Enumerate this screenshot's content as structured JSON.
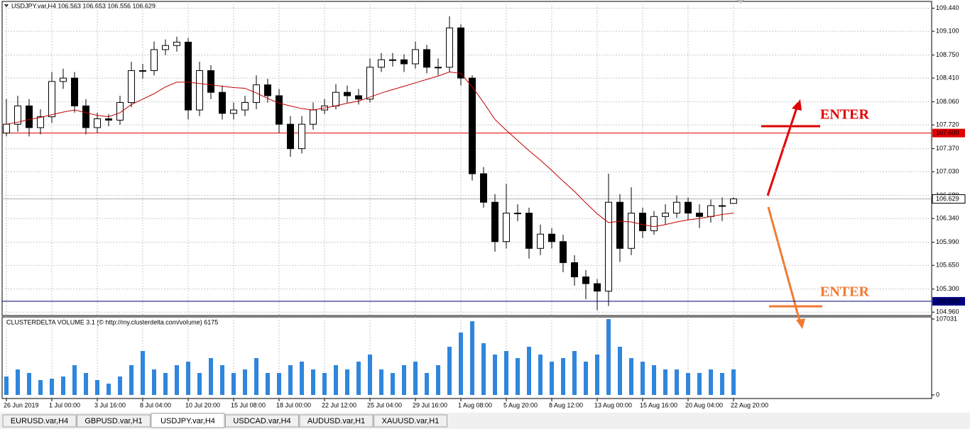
{
  "chart_data": [
    {
      "type": "candlestick",
      "title": "USDJPY.var,H4  106.563 106.653 106.556 106.629",
      "categories": [
        "26 Jun 2019",
        null,
        null,
        null,
        "1 Jul 00:00",
        null,
        null,
        null,
        "3 Jul 16:00",
        null,
        null,
        null,
        "8 Jul 04:00",
        null,
        null,
        null,
        "10 Jul 20:00",
        null,
        null,
        null,
        "15 Jul 08:00",
        null,
        null,
        null,
        "18 Jul 00:00",
        null,
        null,
        null,
        "22 Jul 12:00",
        null,
        null,
        null,
        "25 Jul 04:00",
        null,
        null,
        null,
        "29 Jul 16:00",
        null,
        null,
        null,
        "1 Aug 08:00",
        null,
        null,
        null,
        "5 Aug 20:00",
        null,
        null,
        null,
        "8 Aug 12:00",
        null,
        null,
        null,
        "13 Aug 00:00",
        null,
        null,
        null,
        "15 Aug 16:00",
        null,
        null,
        null,
        "20 Aug 04:00",
        null,
        null,
        null,
        "22 Aug 20:00"
      ],
      "open": [
        107.6,
        107.73,
        108.0,
        107.68,
        107.84,
        108.36,
        108.41,
        108.0,
        107.68,
        107.81,
        107.79,
        108.05,
        108.52,
        108.52,
        108.83,
        108.89,
        108.94,
        107.94,
        108.52,
        108.2,
        107.89,
        107.94,
        108.05,
        108.31,
        108.15,
        107.73,
        107.37,
        107.73,
        107.94,
        108.0,
        108.2,
        108.15,
        108.1,
        108.57,
        108.68,
        108.68,
        108.62,
        108.83,
        108.57,
        108.57,
        109.15,
        108.41,
        107.0,
        106.58,
        106.0,
        106.42,
        106.42,
        105.9,
        106.11,
        106.0,
        105.69,
        105.48,
        105.38,
        105.27,
        106.58,
        105.9,
        106.42,
        106.16,
        106.37,
        106.42,
        106.58,
        106.42,
        106.37,
        106.53,
        106.563
      ],
      "high": [
        108.1,
        108.15,
        108.1,
        107.95,
        108.5,
        108.55,
        108.5,
        108.1,
        107.9,
        107.88,
        108.15,
        108.65,
        108.62,
        108.95,
        108.98,
        109.02,
        109.0,
        108.65,
        108.6,
        108.3,
        108.05,
        108.15,
        108.45,
        108.4,
        108.25,
        107.85,
        107.85,
        108.05,
        108.1,
        108.32,
        108.3,
        108.25,
        108.7,
        108.78,
        108.78,
        108.76,
        108.95,
        108.9,
        108.7,
        109.32,
        109.2,
        108.45,
        107.1,
        106.7,
        106.85,
        106.55,
        106.5,
        106.25,
        106.2,
        106.1,
        105.8,
        105.58,
        105.45,
        107.0,
        106.7,
        106.8,
        106.5,
        106.45,
        106.55,
        106.68,
        106.65,
        106.55,
        106.62,
        106.65,
        106.653
      ],
      "low": [
        107.55,
        107.62,
        107.55,
        107.58,
        107.75,
        108.25,
        107.9,
        107.58,
        107.6,
        107.7,
        107.72,
        107.98,
        108.4,
        108.45,
        108.75,
        108.8,
        107.8,
        107.85,
        108.1,
        107.8,
        107.8,
        107.85,
        107.95,
        108.05,
        107.6,
        107.25,
        107.3,
        107.65,
        107.88,
        107.95,
        108.05,
        108.02,
        108.05,
        108.5,
        108.58,
        108.5,
        108.55,
        108.48,
        108.45,
        108.5,
        108.3,
        106.9,
        106.5,
        105.85,
        105.9,
        106.3,
        105.75,
        105.8,
        105.9,
        105.55,
        105.35,
        105.15,
        104.99,
        105.05,
        105.7,
        105.8,
        106.05,
        106.1,
        106.25,
        106.35,
        106.32,
        106.2,
        106.28,
        106.3,
        106.556
      ],
      "close": [
        107.73,
        108.0,
        107.68,
        107.84,
        108.36,
        108.41,
        108.0,
        107.68,
        107.81,
        107.79,
        108.05,
        108.52,
        108.52,
        108.83,
        108.89,
        108.94,
        107.94,
        108.52,
        108.2,
        107.89,
        107.94,
        108.05,
        108.31,
        108.15,
        107.73,
        107.37,
        107.73,
        107.94,
        108.0,
        108.2,
        108.15,
        108.1,
        108.57,
        108.68,
        108.68,
        108.62,
        108.83,
        108.57,
        108.57,
        109.15,
        108.41,
        107.0,
        106.58,
        106.0,
        106.42,
        106.42,
        105.9,
        106.11,
        106.0,
        105.69,
        105.48,
        105.38,
        105.27,
        106.58,
        105.9,
        106.42,
        106.16,
        106.37,
        106.42,
        106.58,
        106.42,
        106.37,
        106.53,
        106.53,
        106.629
      ],
      "ma": {
        "color": "#c00000",
        "values": [
          107.73,
          107.76,
          107.8,
          107.83,
          107.87,
          107.91,
          107.94,
          107.9,
          107.86,
          107.84,
          107.9,
          108.02,
          108.1,
          108.18,
          108.28,
          108.35,
          108.35,
          108.33,
          108.31,
          108.29,
          108.27,
          108.26,
          108.19,
          108.11,
          108.04,
          108.0,
          107.96,
          107.94,
          107.97,
          108.0,
          108.04,
          108.07,
          108.13,
          108.19,
          108.24,
          108.29,
          108.34,
          108.39,
          108.44,
          108.5,
          108.48,
          108.28,
          108.05,
          107.8,
          107.64,
          107.49,
          107.34,
          107.2,
          107.05,
          106.89,
          106.74,
          106.57,
          106.41,
          106.28,
          106.3,
          106.29,
          106.25,
          106.22,
          106.25,
          106.29,
          106.32,
          106.34,
          106.37,
          106.4,
          106.42
        ]
      },
      "bull_color": "#ffffff",
      "bear_color": "#000000",
      "candle_outline": "#000000",
      "ylim": [
        104.91,
        109.54
      ],
      "yticks": [
        {
          "value": 109.44,
          "label": "109.440"
        },
        {
          "value": 109.1,
          "label": "109.100"
        },
        {
          "value": 108.75,
          "label": "108.750"
        },
        {
          "value": 108.41,
          "label": "108.410"
        },
        {
          "value": 108.06,
          "label": "108.060"
        },
        {
          "value": 107.72,
          "label": "107.720"
        },
        {
          "value": 107.37,
          "label": "107.370"
        },
        {
          "value": 107.03,
          "label": "107.030"
        },
        {
          "value": 106.68,
          "label": "106.680"
        },
        {
          "value": 106.34,
          "label": "106.340"
        },
        {
          "value": 105.99,
          "label": "105.990"
        },
        {
          "value": 105.65,
          "label": "105.650"
        },
        {
          "value": 105.3,
          "label": "105.300"
        },
        {
          "value": 104.96,
          "label": "104.960"
        }
      ],
      "grid": true,
      "levels": [
        {
          "value": 107.6,
          "label": "107.600",
          "color": "#e00000"
        },
        {
          "value": 105.12,
          "label": "105.120",
          "color": "#000080"
        }
      ],
      "last_price": {
        "value": 106.629,
        "label": "106.629"
      },
      "annotations": [
        {
          "text": "ENTER",
          "color": "#e00000"
        },
        {
          "text": "ENTER",
          "color": "#f07a30"
        }
      ]
    },
    {
      "type": "bar",
      "title": "CLUSTERDELTA VOLUME 3.1 (© http://my.clusterdelta.com/volume) 6175",
      "values": [
        26000,
        36000,
        31000,
        21000,
        23000,
        26000,
        42000,
        31000,
        21000,
        16000,
        26000,
        42000,
        62000,
        36000,
        31000,
        42000,
        47000,
        31000,
        52000,
        42000,
        31000,
        36000,
        52000,
        31000,
        31000,
        42000,
        47000,
        36000,
        31000,
        42000,
        36000,
        47000,
        57000,
        36000,
        31000,
        42000,
        47000,
        31000,
        42000,
        68000,
        88000,
        104000,
        73000,
        57000,
        62000,
        52000,
        68000,
        57000,
        47000,
        52000,
        62000,
        47000,
        57000,
        107031,
        68000,
        52000,
        47000,
        42000,
        36000,
        36000,
        31000,
        31000,
        36000,
        31000,
        36000
      ],
      "color": "#2f86dc",
      "ylim": [
        0,
        110000
      ],
      "yticks": [
        107031,
        0
      ]
    }
  ],
  "tabs": {
    "items": [
      "EURUSD.var,H4",
      "GBPUSD.var,H1",
      "USDJPY.var,H4",
      "USDCAD.var,H4",
      "AUDUSD.var,H1",
      "XAUUSD.var,H1"
    ],
    "active": 2
  }
}
